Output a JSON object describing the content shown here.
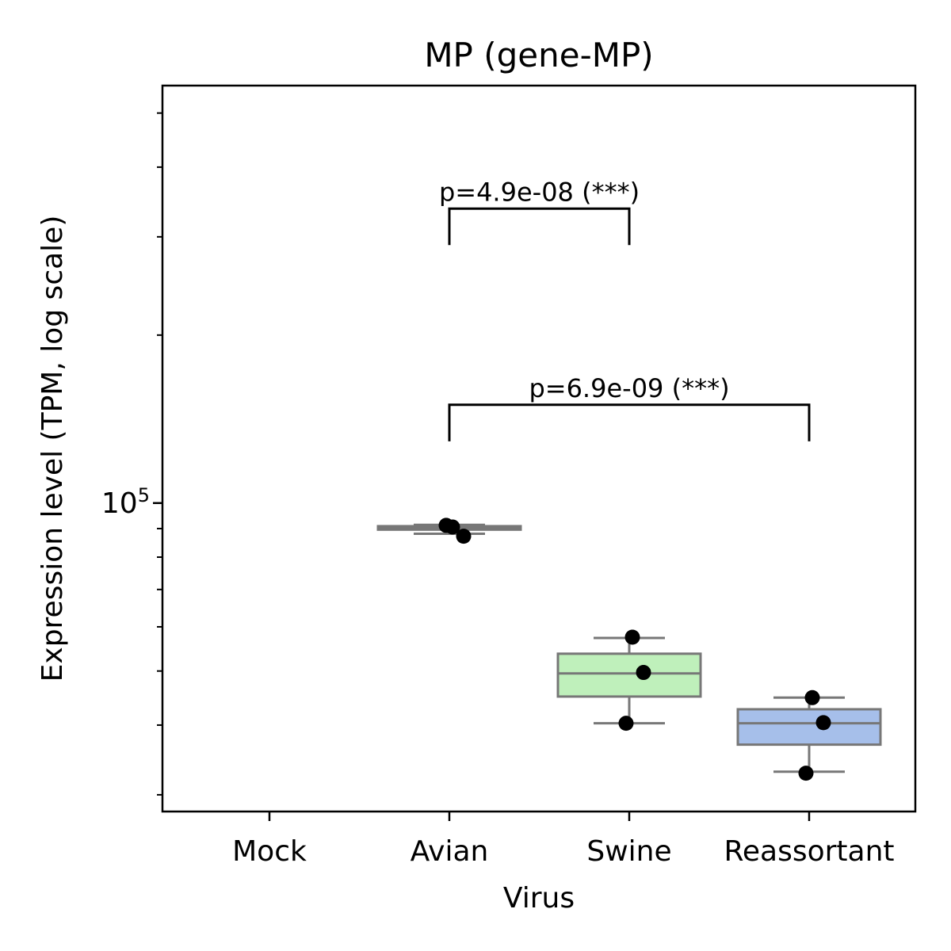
{
  "chart_data": {
    "type": "box",
    "title": "MP (gene-MP)",
    "xlabel": "Virus",
    "ylabel": "Expression level (TPM, log scale)",
    "y_scale": "log",
    "ylim": [
      28000,
      560000
    ],
    "y_tick_labels": [
      {
        "base": "10",
        "exp": "5",
        "value": 100000
      }
    ],
    "categories": [
      "Mock",
      "Avian",
      "Swine",
      "Reassortant"
    ],
    "boxes": [
      {
        "category": "Mock",
        "values": [],
        "q1": null,
        "median": null,
        "q3": null,
        "whisker_low": null,
        "whisker_high": null,
        "color": null
      },
      {
        "category": "Avian",
        "values": [
          90600,
          87200,
          91200
        ],
        "q1": 89600,
        "median": 90400,
        "q3": 90900,
        "whisker_low": 88100,
        "whisker_high": 91400,
        "color": "#bbbbbb"
      },
      {
        "category": "Swine",
        "values": [
          57500,
          49700,
          40300
        ],
        "q1": 45000,
        "median": 49500,
        "q3": 53700,
        "whisker_low": 40300,
        "whisker_high": 57300,
        "color": "#bff0bb"
      },
      {
        "category": "Reassortant",
        "values": [
          44800,
          40400,
          32800
        ],
        "q1": 36900,
        "median": 40300,
        "q3": 42700,
        "whisker_low": 33000,
        "whisker_high": 44800,
        "color": "#a6bfea"
      }
    ],
    "annotations": [
      {
        "from": "Avian",
        "to": "Swine",
        "y_low": 290000,
        "y_high": 337000,
        "text": "p=4.9e-08 (***)"
      },
      {
        "from": "Avian",
        "to": "Reassortant",
        "y_low": 129000,
        "y_high": 150000,
        "text": "p=6.9e-09 (***)"
      }
    ],
    "colors": {
      "box_edge": "#777777",
      "point": "#000000",
      "bracket": "#000000",
      "axis": "#000000"
    }
  }
}
